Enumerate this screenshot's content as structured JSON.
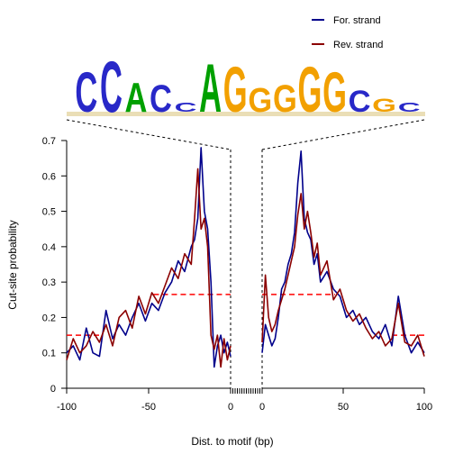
{
  "chart_data": {
    "type": "line",
    "title": "",
    "xlabel": "Dist. to motif (bp)",
    "ylabel": "Cut-site probability",
    "ylim": [
      0,
      0.7
    ],
    "y_ticks": [
      "0",
      "0.1",
      "0.2",
      "0.3",
      "0.4",
      "0.5",
      "0.6",
      "0.7"
    ],
    "x_ticks_left": [
      "-100",
      "-50",
      "0"
    ],
    "x_ticks_right": [
      "0",
      "50",
      "100"
    ],
    "xlim_left": [
      -100,
      0
    ],
    "xlim_right": [
      0,
      100
    ],
    "legend": {
      "placement": "top-right",
      "entries": [
        {
          "label": "For. strand",
          "color": "#00008b"
        },
        {
          "label": "Rev. strand",
          "color": "#8b0000"
        }
      ]
    },
    "reference_lines": {
      "color": "#ff0000",
      "style": "dashed",
      "levels": [
        {
          "side": "left",
          "x": [
            -100,
            -80
          ],
          "y": 0.15
        },
        {
          "side": "left",
          "x": [
            -47,
            0
          ],
          "y": 0.265
        },
        {
          "side": "right",
          "x": [
            0,
            45
          ],
          "y": 0.265
        },
        {
          "side": "right",
          "x": [
            80,
            100
          ],
          "y": 0.15
        }
      ]
    },
    "motif_logo": {
      "letters": [
        "C",
        "C",
        "A",
        "C",
        "C",
        "A",
        "G",
        "G",
        "G",
        "G",
        "G",
        "C",
        "G",
        "C"
      ],
      "letter_colors": {
        "A": "#00a000",
        "C": "#2828c8",
        "G": "#f2a000",
        "T": "#dd0000"
      }
    },
    "series": [
      {
        "name": "For. strand",
        "color": "#00008b",
        "left": {
          "x": [
            -100,
            -96,
            -92,
            -88,
            -84,
            -80,
            -76,
            -72,
            -68,
            -64,
            -60,
            -56,
            -52,
            -48,
            -44,
            -40,
            -36,
            -32,
            -28,
            -24,
            -22,
            -20,
            -18,
            -16,
            -14,
            -12,
            -10,
            -8,
            -6,
            -4,
            -2,
            0
          ],
          "y": [
            0.1,
            0.12,
            0.08,
            0.17,
            0.1,
            0.09,
            0.22,
            0.14,
            0.18,
            0.15,
            0.2,
            0.24,
            0.19,
            0.24,
            0.22,
            0.27,
            0.3,
            0.36,
            0.33,
            0.4,
            0.42,
            0.48,
            0.68,
            0.5,
            0.45,
            0.3,
            0.06,
            0.12,
            0.15,
            0.1,
            0.13,
            0.09
          ]
        },
        "right": {
          "x": [
            0,
            2,
            4,
            6,
            8,
            10,
            12,
            14,
            16,
            18,
            20,
            22,
            24,
            26,
            28,
            30,
            32,
            34,
            36,
            40,
            44,
            48,
            52,
            56,
            60,
            64,
            68,
            72,
            76,
            80,
            84,
            88,
            92,
            96,
            100
          ],
          "y": [
            0.1,
            0.18,
            0.15,
            0.12,
            0.14,
            0.2,
            0.28,
            0.3,
            0.35,
            0.38,
            0.44,
            0.58,
            0.67,
            0.48,
            0.44,
            0.42,
            0.35,
            0.38,
            0.3,
            0.33,
            0.28,
            0.26,
            0.2,
            0.22,
            0.18,
            0.2,
            0.16,
            0.14,
            0.18,
            0.12,
            0.26,
            0.15,
            0.1,
            0.13,
            0.1
          ]
        }
      },
      {
        "name": "Rev. strand",
        "color": "#8b0000",
        "left": {
          "x": [
            -100,
            -96,
            -92,
            -88,
            -84,
            -80,
            -76,
            -72,
            -68,
            -64,
            -60,
            -56,
            -52,
            -48,
            -44,
            -40,
            -36,
            -32,
            -28,
            -24,
            -22,
            -20,
            -18,
            -16,
            -14,
            -12,
            -10,
            -8,
            -6,
            -4,
            -2,
            0
          ],
          "y": [
            0.08,
            0.14,
            0.1,
            0.12,
            0.16,
            0.13,
            0.18,
            0.12,
            0.2,
            0.22,
            0.17,
            0.26,
            0.21,
            0.27,
            0.24,
            0.29,
            0.34,
            0.31,
            0.38,
            0.35,
            0.48,
            0.62,
            0.45,
            0.48,
            0.4,
            0.15,
            0.11,
            0.15,
            0.06,
            0.14,
            0.08,
            0.12
          ]
        },
        "right": {
          "x": [
            0,
            2,
            4,
            6,
            8,
            10,
            12,
            14,
            16,
            18,
            20,
            22,
            24,
            26,
            28,
            30,
            32,
            34,
            36,
            40,
            44,
            48,
            52,
            56,
            60,
            64,
            68,
            72,
            76,
            80,
            84,
            88,
            92,
            96,
            100
          ],
          "y": [
            0.13,
            0.32,
            0.2,
            0.16,
            0.18,
            0.22,
            0.25,
            0.28,
            0.32,
            0.36,
            0.4,
            0.49,
            0.55,
            0.45,
            0.5,
            0.44,
            0.37,
            0.41,
            0.32,
            0.36,
            0.25,
            0.28,
            0.22,
            0.19,
            0.21,
            0.17,
            0.14,
            0.16,
            0.12,
            0.14,
            0.24,
            0.13,
            0.12,
            0.15,
            0.09
          ]
        }
      }
    ]
  }
}
